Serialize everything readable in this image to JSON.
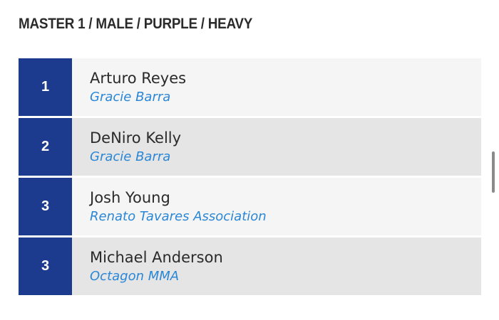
{
  "header": {
    "title": "MASTER 1 / MALE / PURPLE / HEAVY"
  },
  "results": [
    {
      "rank": "1",
      "name": "Arturo Reyes",
      "team": "Gracie Barra"
    },
    {
      "rank": "2",
      "name": "DeNiro Kelly",
      "team": "Gracie Barra"
    },
    {
      "rank": "3",
      "name": "Josh Young",
      "team": "Renato Tavares Association"
    },
    {
      "rank": "3",
      "name": "Michael Anderson",
      "team": "Octagon MMA"
    }
  ],
  "colors": {
    "rank_bg": "#1c3a8e",
    "team_link": "#2a86d6",
    "row_light": "#f5f5f5",
    "row_dark": "#e5e5e5"
  }
}
